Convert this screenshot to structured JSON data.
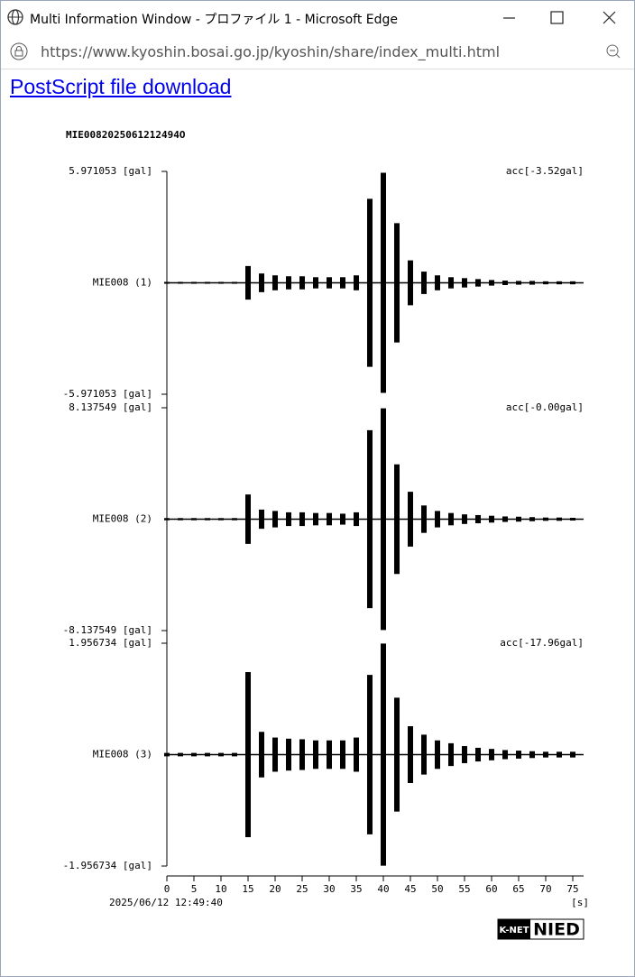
{
  "window": {
    "title": "Multi Information Window - プロファイル 1 - Microsoft Edge",
    "url": "https://www.kyoshin.bosai.go.jp/kyoshin/share/index_multi.html"
  },
  "link": "PostScript file download",
  "figure": {
    "title": "MIE0082025061212494O",
    "time_label": "2025/06/12 12:49:40",
    "x_unit": "[s]",
    "xlim": [
      0,
      77
    ],
    "xticks": [
      0,
      5,
      10,
      15,
      20,
      25,
      30,
      35,
      40,
      45,
      50,
      55,
      60,
      65,
      70,
      75
    ],
    "logo_left": "K-NET",
    "logo_right": "NIED"
  },
  "chart_data": [
    {
      "type": "line",
      "name": "MIE008 (1)",
      "annotation": "acc[-3.52gal]",
      "ylim": [
        -5.971053,
        5.971053
      ],
      "yticks": [
        {
          "value": 5.971053,
          "label": "5.971053 [gal]"
        },
        {
          "value": -5.971053,
          "label": "-5.971053 [gal]"
        }
      ],
      "color": "#000000",
      "x": [
        0,
        2.5,
        5,
        7.5,
        10,
        12.5,
        15,
        17.5,
        20,
        22.5,
        25,
        27.5,
        30,
        32.5,
        35,
        37.5,
        40,
        42.5,
        45,
        47.5,
        50,
        52.5,
        55,
        57.5,
        60,
        62.5,
        65,
        67.5,
        70,
        72.5,
        75
      ],
      "values": [
        0.05,
        0.05,
        0.05,
        0.05,
        0.05,
        0.05,
        0.9,
        0.5,
        0.4,
        0.35,
        0.35,
        0.3,
        0.3,
        0.3,
        0.4,
        4.5,
        5.9,
        3.2,
        1.2,
        0.6,
        0.4,
        0.3,
        0.25,
        0.2,
        0.15,
        0.12,
        0.1,
        0.1,
        0.08,
        0.08,
        0.08
      ]
    },
    {
      "type": "line",
      "name": "MIE008 (2)",
      "annotation": "acc[-0.00gal]",
      "ylim": [
        -8.137549,
        8.137549
      ],
      "yticks": [
        {
          "value": 8.137549,
          "label": "8.137549 [gal]"
        },
        {
          "value": -8.137549,
          "label": "-8.137549 [gal]"
        }
      ],
      "color": "#000000",
      "x": [
        0,
        2.5,
        5,
        7.5,
        10,
        12.5,
        15,
        17.5,
        20,
        22.5,
        25,
        27.5,
        30,
        32.5,
        35,
        37.5,
        40,
        42.5,
        45,
        47.5,
        50,
        52.5,
        55,
        57.5,
        60,
        62.5,
        65,
        67.5,
        70,
        72.5,
        75
      ],
      "values": [
        0.08,
        0.08,
        0.08,
        0.08,
        0.08,
        0.08,
        1.8,
        0.7,
        0.6,
        0.5,
        0.5,
        0.45,
        0.45,
        0.4,
        0.5,
        6.5,
        8.1,
        4.0,
        2.0,
        1.0,
        0.6,
        0.45,
        0.35,
        0.3,
        0.25,
        0.2,
        0.18,
        0.15,
        0.12,
        0.12,
        0.1
      ]
    },
    {
      "type": "line",
      "name": "MIE008 (3)",
      "annotation": "acc[-17.96gal]",
      "ylim": [
        -1.956734,
        1.956734
      ],
      "yticks": [
        {
          "value": 1.956734,
          "label": "1.956734 [gal]"
        },
        {
          "value": -1.956734,
          "label": "-1.956734 [gal]"
        }
      ],
      "color": "#000000",
      "x": [
        0,
        2.5,
        5,
        7.5,
        10,
        12.5,
        15,
        17.5,
        20,
        22.5,
        25,
        27.5,
        30,
        32.5,
        35,
        37.5,
        40,
        42.5,
        45,
        47.5,
        50,
        52.5,
        55,
        57.5,
        60,
        62.5,
        65,
        67.5,
        70,
        72.5,
        75
      ],
      "values": [
        0.03,
        0.03,
        0.03,
        0.03,
        0.03,
        0.03,
        1.45,
        0.4,
        0.3,
        0.28,
        0.27,
        0.25,
        0.25,
        0.25,
        0.3,
        1.4,
        1.95,
        1.0,
        0.5,
        0.35,
        0.25,
        0.2,
        0.15,
        0.12,
        0.1,
        0.08,
        0.07,
        0.06,
        0.05,
        0.05,
        0.05
      ]
    }
  ]
}
